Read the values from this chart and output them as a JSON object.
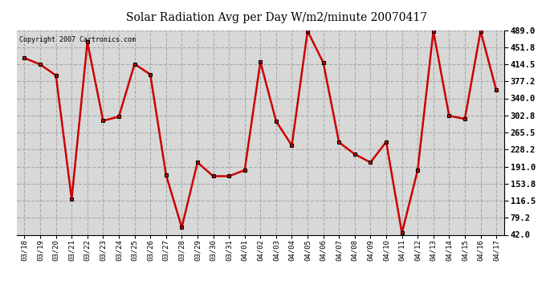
{
  "title": "Solar Radiation Avg per Day W/m2/minute 20070417",
  "copyright": "Copyright 2007 Cartronics.com",
  "line_color": "#cc0000",
  "marker_color": "#000000",
  "bg_color": "#ffffff",
  "plot_bg_color": "#d8d8d8",
  "grid_color": "#aaaaaa",
  "ylim": [
    42.0,
    489.0
  ],
  "yticks": [
    42.0,
    79.2,
    116.5,
    153.8,
    191.0,
    228.2,
    265.5,
    302.8,
    340.0,
    377.2,
    414.5,
    451.8,
    489.0
  ],
  "labels": [
    "03/18",
    "03/19",
    "03/20",
    "03/21",
    "03/22",
    "03/23",
    "03/24",
    "03/25",
    "03/26",
    "03/27",
    "03/28",
    "03/29",
    "03/30",
    "03/31",
    "04/01",
    "04/02",
    "04/03",
    "04/04",
    "04/05",
    "04/06",
    "04/07",
    "04/08",
    "04/09",
    "04/10",
    "04/11",
    "04/12",
    "04/13",
    "04/14",
    "04/15",
    "04/16",
    "04/17"
  ],
  "values": [
    428,
    414,
    390,
    120,
    463,
    291,
    300,
    415,
    392,
    173,
    58,
    200,
    170,
    170,
    183,
    420,
    290,
    237,
    487,
    418,
    244,
    218,
    200,
    245,
    46,
    183,
    487,
    302,
    295,
    487,
    358
  ]
}
